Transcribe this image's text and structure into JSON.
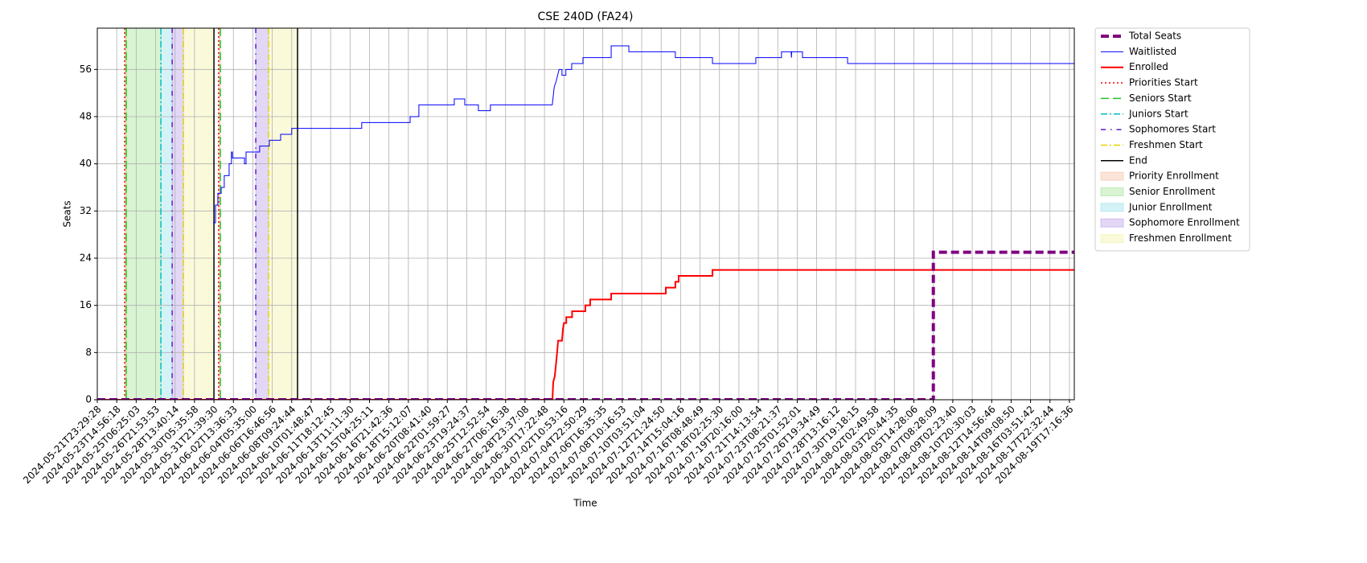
{
  "chart_data": {
    "type": "line",
    "title": "CSE 240D (FA24)",
    "xlabel": "Time",
    "ylabel": "Seats",
    "xlim": [
      0,
      50.25
    ],
    "xticks": [
      {
        "value": 0,
        "label": "2024-05-21T23:29:28"
      },
      {
        "value": 1,
        "label": "2024-05-23T14:56:18"
      },
      {
        "value": 2,
        "label": "2024-05-25T06:25:03"
      },
      {
        "value": 3,
        "label": "2024-05-26T21:53:53"
      },
      {
        "value": 4,
        "label": "2024-05-28T13:40:14"
      },
      {
        "value": 5,
        "label": "2024-05-30T05:35:58"
      },
      {
        "value": 6,
        "label": "2024-05-31T21:39:30"
      },
      {
        "value": 7,
        "label": "2024-06-02T13:36:33"
      },
      {
        "value": 8,
        "label": "2024-06-04T05:35:00"
      },
      {
        "value": 9,
        "label": "2024-06-06T16:46:56"
      },
      {
        "value": 10,
        "label": "2024-06-08T09:24:44"
      },
      {
        "value": 11,
        "label": "2024-06-10T01:48:47"
      },
      {
        "value": 12,
        "label": "2024-06-11T18:12:45"
      },
      {
        "value": 13,
        "label": "2024-06-13T11:11:30"
      },
      {
        "value": 14,
        "label": "2024-06-15T04:25:11"
      },
      {
        "value": 15,
        "label": "2024-06-16T21:42:36"
      },
      {
        "value": 16,
        "label": "2024-06-18T15:12:07"
      },
      {
        "value": 17,
        "label": "2024-06-20T08:41:40"
      },
      {
        "value": 18,
        "label": "2024-06-22T01:59:27"
      },
      {
        "value": 19,
        "label": "2024-06-23T19:24:37"
      },
      {
        "value": 20,
        "label": "2024-06-25T12:52:54"
      },
      {
        "value": 21,
        "label": "2024-06-27T06:16:38"
      },
      {
        "value": 22,
        "label": "2024-06-28T23:37:08"
      },
      {
        "value": 23,
        "label": "2024-06-30T17:22:48"
      },
      {
        "value": 24,
        "label": "2024-07-02T10:53:16"
      },
      {
        "value": 25,
        "label": "2024-07-04T22:50:29"
      },
      {
        "value": 26,
        "label": "2024-07-06T16:35:35"
      },
      {
        "value": 27,
        "label": "2024-07-08T10:16:53"
      },
      {
        "value": 28,
        "label": "2024-07-10T03:51:04"
      },
      {
        "value": 29,
        "label": "2024-07-12T21:24:50"
      },
      {
        "value": 30,
        "label": "2024-07-14T15:04:16"
      },
      {
        "value": 31,
        "label": "2024-07-16T08:48:49"
      },
      {
        "value": 32,
        "label": "2024-07-18T02:25:30"
      },
      {
        "value": 33,
        "label": "2024-07-19T20:16:00"
      },
      {
        "value": 34,
        "label": "2024-07-21T14:13:54"
      },
      {
        "value": 35,
        "label": "2024-07-23T08:21:37"
      },
      {
        "value": 36,
        "label": "2024-07-25T01:52:01"
      },
      {
        "value": 37,
        "label": "2024-07-26T19:34:49"
      },
      {
        "value": 38,
        "label": "2024-07-28T13:16:12"
      },
      {
        "value": 39,
        "label": "2024-07-30T19:18:15"
      },
      {
        "value": 40,
        "label": "2024-08-02T02:49:58"
      },
      {
        "value": 41,
        "label": "2024-08-03T20:44:35"
      },
      {
        "value": 42,
        "label": "2024-08-05T14:28:06"
      },
      {
        "value": 43,
        "label": "2024-08-07T08:28:09"
      },
      {
        "value": 44,
        "label": "2024-08-09T02:23:40"
      },
      {
        "value": 45,
        "label": "2024-08-10T20:30:03"
      },
      {
        "value": 46,
        "label": "2024-08-12T14:56:46"
      },
      {
        "value": 47,
        "label": "2024-08-14T09:08:50"
      },
      {
        "value": 48,
        "label": "2024-08-16T03:51:42"
      },
      {
        "value": 49,
        "label": "2024-08-17T22:32:44"
      },
      {
        "value": 50,
        "label": "2024-08-19T17:16:36"
      }
    ],
    "ylim": [
      0,
      63
    ],
    "yticks": [
      0,
      8,
      16,
      24,
      32,
      40,
      48,
      56
    ],
    "grid": true,
    "legend": "outside-upper-right",
    "series": [
      {
        "name": "Total Seats",
        "color": "#800080",
        "style": "dashed",
        "width": 4,
        "x": [
          0,
          43.0,
          43.0,
          50.25
        ],
        "values": [
          0,
          0,
          25,
          25
        ]
      },
      {
        "name": "Waitlisted",
        "color": "#0000ff",
        "style": "solid",
        "width": 1,
        "x": [
          5.96,
          6.08,
          6.08,
          6.2,
          6.2,
          6.37,
          6.37,
          6.53,
          6.53,
          6.78,
          6.78,
          6.9,
          6.9,
          6.95,
          6.95,
          7.57,
          7.57,
          7.65,
          7.65,
          8.35,
          8.35,
          8.85,
          8.85,
          9.43,
          9.43,
          10.0,
          10.0,
          13.6,
          13.6,
          16.09,
          16.09,
          16.54,
          16.54,
          18.36,
          18.36,
          18.9,
          18.9,
          19.6,
          19.6,
          20.22,
          20.22,
          23.4,
          23.5,
          23.6,
          23.75,
          23.9,
          23.9,
          24.1,
          24.1,
          24.4,
          24.4,
          24.98,
          24.98,
          26.43,
          26.43,
          27.34,
          27.34,
          29.73,
          29.73,
          31.64,
          31.64,
          33.87,
          33.87,
          35.19,
          35.19,
          35.69,
          35.7,
          35.72,
          36.27,
          36.27,
          38.59,
          38.59,
          50.25
        ],
        "values": [
          30,
          30,
          33,
          33,
          35,
          35,
          36,
          36,
          38,
          38,
          40,
          40,
          42,
          42,
          41,
          41,
          40,
          40,
          42,
          42,
          43,
          43,
          44,
          44,
          45,
          45,
          46,
          46,
          47,
          47,
          48,
          48,
          50,
          50,
          51,
          51,
          50,
          50,
          49,
          49,
          50,
          50,
          53,
          54,
          56,
          56,
          55,
          55,
          56,
          56,
          57,
          57,
          58,
          58,
          60,
          60,
          59,
          59,
          58,
          58,
          57,
          57,
          58,
          58,
          59,
          59,
          58,
          59,
          59,
          58,
          58,
          57,
          57
        ]
      },
      {
        "name": "Enrolled",
        "color": "#ff0000",
        "style": "solid",
        "width": 2,
        "x": [
          0,
          23.41,
          23.45,
          23.53,
          23.65,
          23.7,
          23.9,
          23.95,
          24.0,
          24.12,
          24.12,
          24.42,
          24.42,
          25.1,
          25.1,
          25.35,
          25.35,
          26.43,
          26.43,
          29.24,
          29.24,
          29.73,
          29.73,
          29.9,
          29.9,
          31.64,
          31.64,
          50.25
        ],
        "values": [
          0,
          0,
          3,
          4,
          8,
          10,
          10,
          12,
          13,
          13,
          14,
          14,
          15,
          15,
          16,
          16,
          17,
          17,
          18,
          18,
          19,
          19,
          20,
          20,
          21,
          21,
          22,
          22
        ]
      }
    ],
    "vlines": [
      {
        "name": "Priorities Start",
        "color": "#ff0000",
        "style": "dotted",
        "x": [
          1.41,
          6.24
        ]
      },
      {
        "name": "Seniors Start",
        "color": "#22c322",
        "style": "dashed",
        "x": [
          1.49,
          6.33
        ]
      },
      {
        "name": "Juniors Start",
        "color": "#00bfbf",
        "style": "dashdot",
        "x": [
          3.27
        ]
      },
      {
        "name": "Sophomores Start",
        "color": "#5a1ad0",
        "style": "loosedashdot",
        "x": [
          3.85,
          8.15
        ]
      },
      {
        "name": "Freshmen Start",
        "color": "#e6d200",
        "style": "dashdot",
        "x": [
          4.43,
          8.81
        ]
      },
      {
        "name": "End",
        "color": "#000000",
        "style": "solid",
        "x": [
          6.0,
          10.3
        ]
      }
    ],
    "spans": [
      {
        "name": "Priority Enrollment",
        "color": "#f4a582",
        "ranges": [
          [
            1.41,
            1.49
          ],
          [
            6.24,
            6.33
          ]
        ]
      },
      {
        "name": "Senior Enrollment",
        "color": "#7ddc6a",
        "ranges": [
          [
            1.49,
            3.27
          ]
        ]
      },
      {
        "name": "Junior Enrollment",
        "color": "#6fd8e0",
        "ranges": [
          [
            3.27,
            3.85
          ]
        ]
      },
      {
        "name": "Sophomore Enrollment",
        "color": "#a37be0",
        "ranges": [
          [
            3.85,
            4.43
          ],
          [
            8.15,
            8.81
          ]
        ]
      },
      {
        "name": "Freshmen Enrollment",
        "color": "#eeee88",
        "ranges": [
          [
            4.43,
            6.0
          ],
          [
            8.81,
            10.3
          ]
        ]
      }
    ]
  }
}
